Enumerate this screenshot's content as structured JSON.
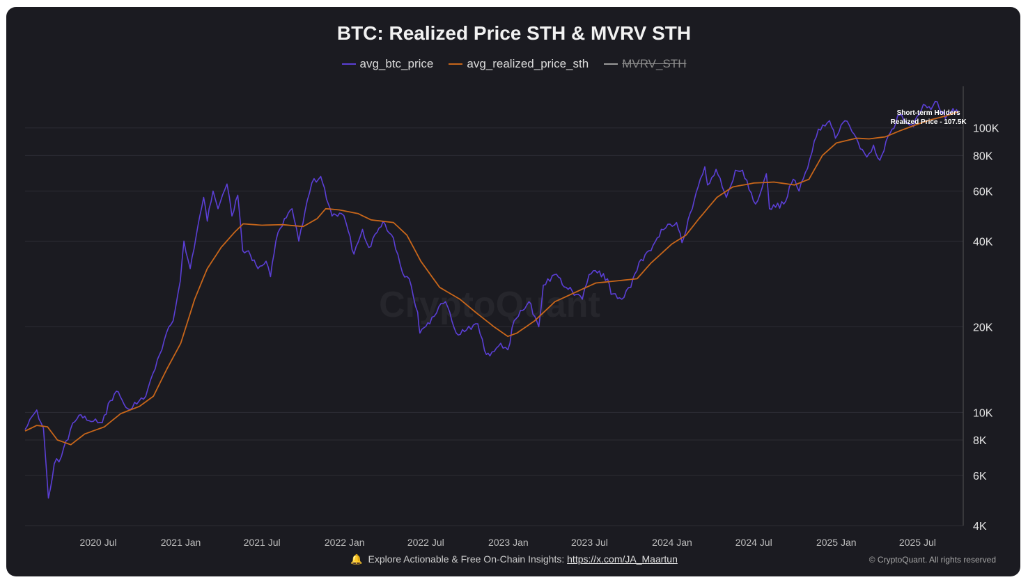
{
  "chart_data": {
    "type": "line",
    "title": "BTC: Realized Price STH & MVRV STH",
    "yscale": "log",
    "ylim": [
      4000,
      140000
    ],
    "xlim": [
      "2020-01-20",
      "2025-09-30"
    ],
    "yticks": [
      {
        "value": 4000,
        "label": "4K"
      },
      {
        "value": 6000,
        "label": "6K"
      },
      {
        "value": 8000,
        "label": "8K"
      },
      {
        "value": 10000,
        "label": "10K"
      },
      {
        "value": 20000,
        "label": "20K"
      },
      {
        "value": 40000,
        "label": "40K"
      },
      {
        "value": 60000,
        "label": "60K"
      },
      {
        "value": 80000,
        "label": "80K"
      },
      {
        "value": 100000,
        "label": "100K"
      }
    ],
    "xticks": [
      {
        "date": "2020-07-01",
        "label": "2020 Jul"
      },
      {
        "date": "2021-01-01",
        "label": "2021 Jan"
      },
      {
        "date": "2021-07-01",
        "label": "2021 Jul"
      },
      {
        "date": "2022-01-01",
        "label": "2022 Jan"
      },
      {
        "date": "2022-07-01",
        "label": "2022 Jul"
      },
      {
        "date": "2023-01-01",
        "label": "2023 Jan"
      },
      {
        "date": "2023-07-01",
        "label": "2023 Jul"
      },
      {
        "date": "2024-01-01",
        "label": "2024 Jan"
      },
      {
        "date": "2024-07-01",
        "label": "2024 Jul"
      },
      {
        "date": "2025-01-01",
        "label": "2025 Jan"
      },
      {
        "date": "2025-07-01",
        "label": "2025 Jul"
      }
    ],
    "series": [
      {
        "name": "avg_btc_price",
        "color": "#5b3fd6",
        "visible": true,
        "points": [
          [
            "2020-01-20",
            8700
          ],
          [
            "2020-02-05",
            9700
          ],
          [
            "2020-02-15",
            10200
          ],
          [
            "2020-03-01",
            8800
          ],
          [
            "2020-03-12",
            5000
          ],
          [
            "2020-03-25",
            6600
          ],
          [
            "2020-04-10",
            7000
          ],
          [
            "2020-04-30",
            8700
          ],
          [
            "2020-05-15",
            9500
          ],
          [
            "2020-06-01",
            9700
          ],
          [
            "2020-06-20",
            9300
          ],
          [
            "2020-07-10",
            9200
          ],
          [
            "2020-07-28",
            11000
          ],
          [
            "2020-08-15",
            11800
          ],
          [
            "2020-09-05",
            10300
          ],
          [
            "2020-09-25",
            10700
          ],
          [
            "2020-10-15",
            11400
          ],
          [
            "2020-10-31",
            13700
          ],
          [
            "2020-11-15",
            16000
          ],
          [
            "2020-11-30",
            19000
          ],
          [
            "2020-12-15",
            21000
          ],
          [
            "2020-12-31",
            29000
          ],
          [
            "2021-01-08",
            40000
          ],
          [
            "2021-01-22",
            32000
          ],
          [
            "2021-02-08",
            45000
          ],
          [
            "2021-02-21",
            57000
          ],
          [
            "2021-03-01",
            47000
          ],
          [
            "2021-03-14",
            60000
          ],
          [
            "2021-03-25",
            52000
          ],
          [
            "2021-04-14",
            63500
          ],
          [
            "2021-04-25",
            49000
          ],
          [
            "2021-05-08",
            58000
          ],
          [
            "2021-05-19",
            37000
          ],
          [
            "2021-06-01",
            37000
          ],
          [
            "2021-06-22",
            32000
          ],
          [
            "2021-07-10",
            34000
          ],
          [
            "2021-07-20",
            30000
          ],
          [
            "2021-08-01",
            40000
          ],
          [
            "2021-08-20",
            48000
          ],
          [
            "2021-09-06",
            52000
          ],
          [
            "2021-09-21",
            40000
          ],
          [
            "2021-10-05",
            51000
          ],
          [
            "2021-10-20",
            64000
          ],
          [
            "2021-11-09",
            67500
          ],
          [
            "2021-11-26",
            54000
          ],
          [
            "2021-12-04",
            49000
          ],
          [
            "2021-12-25",
            50000
          ],
          [
            "2022-01-05",
            46000
          ],
          [
            "2022-01-22",
            36000
          ],
          [
            "2022-02-10",
            44000
          ],
          [
            "2022-02-24",
            38000
          ],
          [
            "2022-03-28",
            47000
          ],
          [
            "2022-04-20",
            41000
          ],
          [
            "2022-05-10",
            31000
          ],
          [
            "2022-05-25",
            29500
          ],
          [
            "2022-06-13",
            22500
          ],
          [
            "2022-06-18",
            19000
          ],
          [
            "2022-07-10",
            20500
          ],
          [
            "2022-07-30",
            23500
          ],
          [
            "2022-08-14",
            24500
          ],
          [
            "2022-09-07",
            19000
          ],
          [
            "2022-09-30",
            19500
          ],
          [
            "2022-10-25",
            20500
          ],
          [
            "2022-11-09",
            16500
          ],
          [
            "2022-11-21",
            15800
          ],
          [
            "2022-12-15",
            17500
          ],
          [
            "2022-12-31",
            16600
          ],
          [
            "2023-01-14",
            21000
          ],
          [
            "2023-02-16",
            24500
          ],
          [
            "2023-03-10",
            20000
          ],
          [
            "2023-03-20",
            28000
          ],
          [
            "2023-04-14",
            30500
          ],
          [
            "2023-05-10",
            27500
          ],
          [
            "2023-06-15",
            25000
          ],
          [
            "2023-06-30",
            30500
          ],
          [
            "2023-07-14",
            31500
          ],
          [
            "2023-08-10",
            29500
          ],
          [
            "2023-08-18",
            26000
          ],
          [
            "2023-09-11",
            25000
          ],
          [
            "2023-10-01",
            27500
          ],
          [
            "2023-10-24",
            34500
          ],
          [
            "2023-11-15",
            37000
          ],
          [
            "2023-12-08",
            44000
          ],
          [
            "2024-01-11",
            46500
          ],
          [
            "2024-01-23",
            39500
          ],
          [
            "2024-02-15",
            52000
          ],
          [
            "2024-02-28",
            62000
          ],
          [
            "2024-03-14",
            73000
          ],
          [
            "2024-03-20",
            63000
          ],
          [
            "2024-04-08",
            71500
          ],
          [
            "2024-05-01",
            57000
          ],
          [
            "2024-05-21",
            71000
          ],
          [
            "2024-06-06",
            71000
          ],
          [
            "2024-07-05",
            54000
          ],
          [
            "2024-07-29",
            69000
          ],
          [
            "2024-08-05",
            52000
          ],
          [
            "2024-09-06",
            54000
          ],
          [
            "2024-09-27",
            66000
          ],
          [
            "2024-10-10",
            60000
          ],
          [
            "2024-10-29",
            72000
          ],
          [
            "2024-11-13",
            90000
          ],
          [
            "2024-11-22",
            99000
          ],
          [
            "2024-12-17",
            106000
          ],
          [
            "2024-12-30",
            92000
          ],
          [
            "2025-01-20",
            106000
          ],
          [
            "2025-02-05",
            97000
          ],
          [
            "2025-02-28",
            84000
          ],
          [
            "2025-03-10",
            79000
          ],
          [
            "2025-03-25",
            87000
          ],
          [
            "2025-04-08",
            77000
          ],
          [
            "2025-05-01",
            96000
          ],
          [
            "2025-05-22",
            111000
          ],
          [
            "2025-06-22",
            101000
          ],
          [
            "2025-07-14",
            121000
          ],
          [
            "2025-07-31",
            116000
          ],
          [
            "2025-08-14",
            123500
          ],
          [
            "2025-09-01",
            108000
          ],
          [
            "2025-09-18",
            117000
          ],
          [
            "2025-09-30",
            112000
          ]
        ]
      },
      {
        "name": "avg_realized_price_sth",
        "color": "#c8661a",
        "visible": true,
        "points": [
          [
            "2020-01-20",
            8600
          ],
          [
            "2020-02-15",
            9000
          ],
          [
            "2020-03-10",
            8900
          ],
          [
            "2020-04-01",
            8000
          ],
          [
            "2020-05-01",
            7700
          ],
          [
            "2020-06-01",
            8400
          ],
          [
            "2020-07-15",
            8900
          ],
          [
            "2020-08-20",
            9900
          ],
          [
            "2020-10-01",
            10500
          ],
          [
            "2020-11-01",
            11400
          ],
          [
            "2020-12-01",
            14200
          ],
          [
            "2021-01-01",
            17500
          ],
          [
            "2021-02-01",
            25000
          ],
          [
            "2021-03-01",
            32000
          ],
          [
            "2021-04-01",
            38000
          ],
          [
            "2021-05-01",
            43000
          ],
          [
            "2021-05-20",
            46000
          ],
          [
            "2021-07-01",
            45500
          ],
          [
            "2021-08-15",
            45700
          ],
          [
            "2021-10-01",
            45000
          ],
          [
            "2021-11-01",
            48000
          ],
          [
            "2021-11-20",
            52000
          ],
          [
            "2021-12-20",
            51500
          ],
          [
            "2022-01-31",
            50000
          ],
          [
            "2022-03-01",
            47500
          ],
          [
            "2022-04-20",
            46500
          ],
          [
            "2022-05-20",
            42000
          ],
          [
            "2022-06-20",
            34000
          ],
          [
            "2022-08-01",
            27500
          ],
          [
            "2022-09-15",
            25000
          ],
          [
            "2022-10-20",
            22500
          ],
          [
            "2022-11-30",
            20000
          ],
          [
            "2022-12-31",
            18500
          ],
          [
            "2023-01-20",
            19000
          ],
          [
            "2023-03-01",
            21000
          ],
          [
            "2023-04-15",
            24500
          ],
          [
            "2023-06-01",
            26500
          ],
          [
            "2023-07-15",
            28500
          ],
          [
            "2023-09-01",
            29000
          ],
          [
            "2023-10-15",
            29500
          ],
          [
            "2023-11-15",
            33500
          ],
          [
            "2023-12-31",
            39000
          ],
          [
            "2024-02-01",
            42000
          ],
          [
            "2024-03-01",
            48000
          ],
          [
            "2024-04-10",
            57000
          ],
          [
            "2024-05-15",
            62000
          ],
          [
            "2024-07-01",
            64000
          ],
          [
            "2024-08-15",
            64500
          ],
          [
            "2024-09-30",
            63000
          ],
          [
            "2024-11-01",
            66000
          ],
          [
            "2024-12-01",
            80000
          ],
          [
            "2025-01-01",
            88500
          ],
          [
            "2025-02-15",
            92000
          ],
          [
            "2025-03-15",
            91500
          ],
          [
            "2025-04-20",
            93000
          ],
          [
            "2025-05-25",
            98000
          ],
          [
            "2025-07-01",
            103000
          ],
          [
            "2025-08-01",
            107000
          ],
          [
            "2025-09-01",
            110000
          ],
          [
            "2025-09-30",
            114000
          ]
        ]
      }
    ],
    "annotations": [
      {
        "line1": "Short-term Holders",
        "line2": "Realized Price - 107.5K",
        "date": "2025-08-10",
        "value": 107500
      }
    ]
  },
  "legend": [
    {
      "label": "avg_btc_price",
      "color": "#5b3fd6",
      "hidden": false
    },
    {
      "label": "avg_realized_price_sth",
      "color": "#c8661a",
      "hidden": false
    },
    {
      "label": "MVRV_STH",
      "color": "#9a9a9a",
      "hidden": true
    }
  ],
  "watermark": "CryptoQuant",
  "footer": {
    "bell_icon": "🔔",
    "text": "Explore Actionable & Free On-Chain Insights: ",
    "link": "https://x.com/JA_Maartun",
    "copyright": "© CryptoQuant. All rights reserved"
  }
}
